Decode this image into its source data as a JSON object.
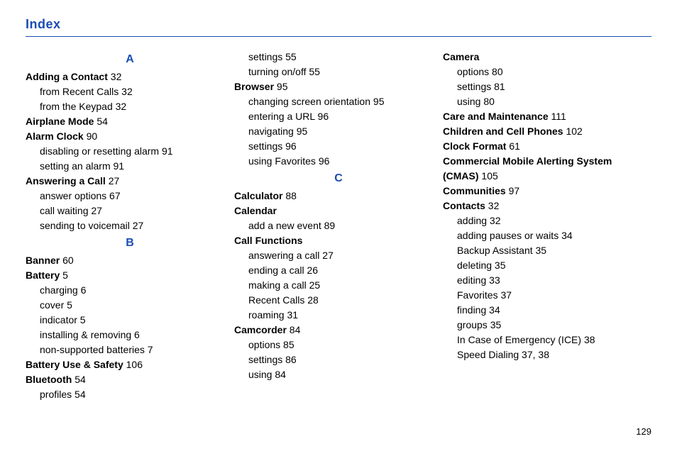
{
  "header": "Index",
  "page_number": "129",
  "colors": {
    "accent": "#1a4db3",
    "text": "#000000",
    "bg": "#ffffff"
  },
  "col1": [
    {
      "type": "letter",
      "text": "A"
    },
    {
      "type": "l1",
      "term": "Adding a Contact",
      "pg": "32"
    },
    {
      "type": "l2",
      "term": "from Recent Calls",
      "pg": "32"
    },
    {
      "type": "l2",
      "term": "from the Keypad",
      "pg": "32"
    },
    {
      "type": "l1",
      "term": "Airplane Mode",
      "pg": "54"
    },
    {
      "type": "l1",
      "term": "Alarm Clock",
      "pg": "90"
    },
    {
      "type": "l2",
      "term": "disabling or resetting alarm",
      "pg": "91"
    },
    {
      "type": "l2",
      "term": "setting an alarm",
      "pg": "91"
    },
    {
      "type": "l1",
      "term": "Answering a Call",
      "pg": "27"
    },
    {
      "type": "l2",
      "term": "answer options",
      "pg": "67"
    },
    {
      "type": "l2",
      "term": "call waiting",
      "pg": "27"
    },
    {
      "type": "l2",
      "term": "sending to voicemail",
      "pg": "27"
    },
    {
      "type": "letter",
      "text": "B"
    },
    {
      "type": "l1",
      "term": "Banner",
      "pg": "60"
    },
    {
      "type": "l1",
      "term": "Battery",
      "pg": "5"
    },
    {
      "type": "l2",
      "term": "charging",
      "pg": "6"
    },
    {
      "type": "l2",
      "term": "cover",
      "pg": "5"
    },
    {
      "type": "l2",
      "term": "indicator",
      "pg": "5"
    },
    {
      "type": "l2",
      "term": "installing & removing",
      "pg": "6"
    },
    {
      "type": "l2",
      "term": "non-supported batteries",
      "pg": "7"
    },
    {
      "type": "l1",
      "term": "Battery Use & Safety",
      "pg": "106"
    },
    {
      "type": "l1",
      "term": "Bluetooth",
      "pg": "54"
    },
    {
      "type": "l2",
      "term": "profiles",
      "pg": "54"
    }
  ],
  "col2": [
    {
      "type": "l2",
      "term": "settings",
      "pg": "55"
    },
    {
      "type": "l2",
      "term": "turning on/off",
      "pg": "55"
    },
    {
      "type": "l1",
      "term": "Browser",
      "pg": "95"
    },
    {
      "type": "l2",
      "term": "changing screen orientation",
      "pg": "95"
    },
    {
      "type": "l2",
      "term": "entering a URL",
      "pg": "96"
    },
    {
      "type": "l2",
      "term": "navigating",
      "pg": "95"
    },
    {
      "type": "l2",
      "term": "settings",
      "pg": "96"
    },
    {
      "type": "l2",
      "term": "using Favorites",
      "pg": "96"
    },
    {
      "type": "letter",
      "text": "C"
    },
    {
      "type": "l1",
      "term": "Calculator",
      "pg": "88"
    },
    {
      "type": "l1",
      "term": "Calendar",
      "pg": ""
    },
    {
      "type": "l2",
      "term": "add a new event",
      "pg": "89"
    },
    {
      "type": "l1",
      "term": "Call Functions",
      "pg": ""
    },
    {
      "type": "l2",
      "term": "answering a call",
      "pg": "27"
    },
    {
      "type": "l2",
      "term": "ending a call",
      "pg": "26"
    },
    {
      "type": "l2",
      "term": "making a call",
      "pg": "25"
    },
    {
      "type": "l2",
      "term": "Recent Calls",
      "pg": "28"
    },
    {
      "type": "l2",
      "term": "roaming",
      "pg": "31"
    },
    {
      "type": "l1",
      "term": "Camcorder",
      "pg": "84"
    },
    {
      "type": "l2",
      "term": "options",
      "pg": "85"
    },
    {
      "type": "l2",
      "term": "settings",
      "pg": "86"
    },
    {
      "type": "l2",
      "term": "using",
      "pg": "84"
    }
  ],
  "col3": [
    {
      "type": "l1",
      "term": "Camera",
      "pg": ""
    },
    {
      "type": "l2",
      "term": "options",
      "pg": "80"
    },
    {
      "type": "l2",
      "term": "settings",
      "pg": "81"
    },
    {
      "type": "l2",
      "term": "using",
      "pg": "80"
    },
    {
      "type": "l1",
      "term": "Care and Maintenance",
      "pg": "111"
    },
    {
      "type": "l1",
      "term": "Children and Cell Phones",
      "pg": "102"
    },
    {
      "type": "l1",
      "term": "Clock Format",
      "pg": "61"
    },
    {
      "type": "l1",
      "term": "Commercial Mobile Alerting System",
      "pg": ""
    },
    {
      "type": "l1c",
      "term": "(CMAS)",
      "pg": "105"
    },
    {
      "type": "l1",
      "term": "Communities",
      "pg": "97"
    },
    {
      "type": "l1",
      "term": "Contacts",
      "pg": "32"
    },
    {
      "type": "l2",
      "term": "adding",
      "pg": "32"
    },
    {
      "type": "l2",
      "term": "adding pauses or waits",
      "pg": "34"
    },
    {
      "type": "l2",
      "term": "Backup Assistant",
      "pg": "35"
    },
    {
      "type": "l2",
      "term": "deleting",
      "pg": "35"
    },
    {
      "type": "l2",
      "term": "editing",
      "pg": "33"
    },
    {
      "type": "l2",
      "term": "Favorites",
      "pg": "37"
    },
    {
      "type": "l2",
      "term": "finding",
      "pg": "34"
    },
    {
      "type": "l2",
      "term": "groups",
      "pg": "35"
    },
    {
      "type": "l2",
      "term": "In Case of Emergency (ICE)",
      "pg": "38"
    },
    {
      "type": "l2",
      "term": "Speed Dialing",
      "pg": "37, 38"
    }
  ]
}
